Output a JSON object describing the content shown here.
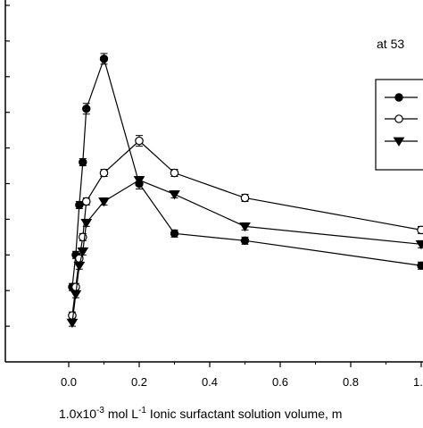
{
  "chart_data": {
    "type": "line",
    "annotation": "at 53",
    "xlabel_text": "1.0x10",
    "xlabel_exp": "-3",
    "xlabel_mid": " mol L",
    "xlabel_exp2": "-1",
    "xlabel_tail": " Ionic surfactant solution volume, m",
    "xlim": [
      -0.15,
      1.0
    ],
    "ylim": [
      0,
      100
    ],
    "xticks": [
      {
        "value": 0.0,
        "label": "0.0"
      },
      {
        "value": 0.2,
        "label": "0.2"
      },
      {
        "value": 0.4,
        "label": "0.4"
      },
      {
        "value": 0.6,
        "label": "0.6"
      },
      {
        "value": 0.8,
        "label": "0.8"
      },
      {
        "value": 1.0,
        "label": "1."
      }
    ],
    "ytick_values": [
      10,
      20,
      30,
      40,
      50,
      60,
      70,
      80,
      90,
      100
    ],
    "legend_location": "right",
    "series": [
      {
        "marker": "filled-circle",
        "x": [
          0.01,
          0.02,
          0.03,
          0.04,
          0.05,
          0.1,
          0.2,
          0.3,
          0.5,
          1.0
        ],
        "y": [
          21,
          30,
          44,
          56,
          71,
          85,
          50,
          36,
          34,
          27
        ],
        "err": [
          1.0,
          1.0,
          1.0,
          1.0,
          1.5,
          1.5,
          1.5,
          1.0,
          1.0,
          1.0
        ]
      },
      {
        "marker": "open-circle",
        "x": [
          0.01,
          0.02,
          0.03,
          0.04,
          0.05,
          0.1,
          0.2,
          0.3,
          0.5,
          1.0
        ],
        "y": [
          13,
          21,
          29,
          35,
          45,
          53,
          62,
          53,
          46,
          37
        ],
        "err": [
          1.0,
          1.0,
          1.0,
          1.0,
          1.0,
          1.0,
          1.5,
          1.0,
          1.0,
          1.0
        ]
      },
      {
        "marker": "filled-triangle-down",
        "x": [
          0.01,
          0.02,
          0.03,
          0.04,
          0.05,
          0.1,
          0.2,
          0.3,
          0.5,
          1.0
        ],
        "y": [
          11,
          19,
          27,
          31,
          39,
          45,
          51,
          47,
          38,
          33
        ],
        "err": [
          1.0,
          1.0,
          1.0,
          1.0,
          1.0,
          1.0,
          1.0,
          1.0,
          1.0,
          1.0
        ]
      }
    ]
  }
}
